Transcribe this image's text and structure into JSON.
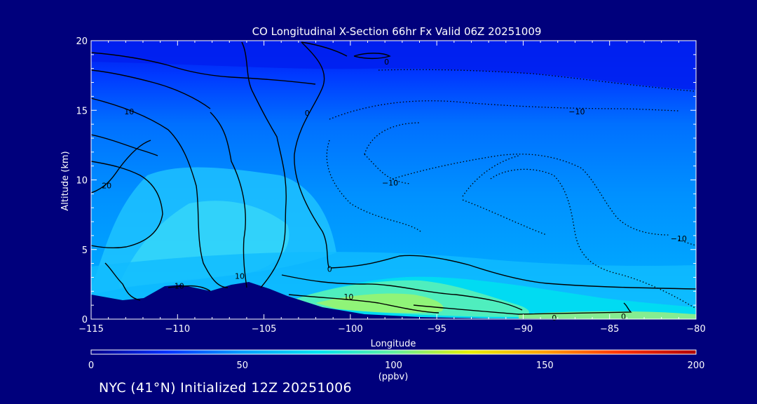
{
  "chart_data": {
    "type": "heatmap",
    "title": "CO Longitudinal X-Section 66hr  Fx Valid 06Z 20251009",
    "xlabel": "Longitude",
    "ylabel": "Altitude (km)",
    "xlim": [
      -115,
      -80
    ],
    "ylim": [
      0,
      20
    ],
    "x_ticks": [
      -115,
      -110,
      -105,
      -100,
      -95,
      -90,
      -85,
      -80
    ],
    "x_tick_labels": [
      "−115",
      "−110",
      "−105",
      "−100",
      "−95",
      "−90",
      "−85",
      "−80"
    ],
    "y_ticks": [
      0,
      5,
      10,
      15,
      20
    ],
    "colorbar": {
      "min": 0,
      "max": 200,
      "ticks": [
        0,
        50,
        100,
        150,
        200
      ],
      "unit_label": "(ppbv)",
      "colors": [
        "#00008c",
        "#0030ff",
        "#00a0ff",
        "#00e4f0",
        "#60f0a0",
        "#e8f000",
        "#ffa000",
        "#ff3000",
        "#b00000"
      ]
    },
    "contour_labels": [
      {
        "text": "10",
        "lon": -112.8,
        "alt": 14.9
      },
      {
        "text": "0",
        "lon": -102.5,
        "alt": 14.8
      },
      {
        "text": "0",
        "lon": -97.9,
        "alt": 18.5
      },
      {
        "text": "−10",
        "lon": -86.9,
        "alt": 14.9
      },
      {
        "text": "20",
        "lon": -114.1,
        "alt": 9.6
      },
      {
        "text": "−10",
        "lon": -97.7,
        "alt": 9.8
      },
      {
        "text": "−10",
        "lon": -81.0,
        "alt": 5.8
      },
      {
        "text": "0",
        "lon": -101.2,
        "alt": 3.6
      },
      {
        "text": "10",
        "lon": -106.4,
        "alt": 3.1
      },
      {
        "text": "10",
        "lon": -109.9,
        "alt": 2.4
      },
      {
        "text": "10",
        "lon": -100.1,
        "alt": 1.6
      },
      {
        "text": "0",
        "lon": -88.2,
        "alt": 0.1
      },
      {
        "text": "0",
        "lon": -84.2,
        "alt": 0.2
      }
    ]
  },
  "footer": {
    "location_line": "NYC (41°N) Initialized 12Z 20251006"
  }
}
